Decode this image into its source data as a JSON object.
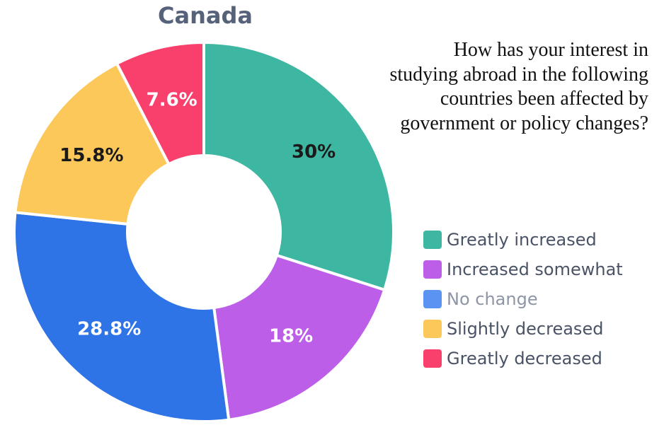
{
  "chart_data": {
    "type": "pie",
    "variant": "donut",
    "title": "Canada",
    "question": "How has your interest in studying abroad in the following countries been affected by government or policy changes?",
    "start_angle_deg": 0,
    "direction": "clockwise",
    "legend_position": "right",
    "series": [
      {
        "name": "Greatly increased",
        "value": 30,
        "label": "30%",
        "color": "#3db6a2",
        "label_color": "#1a1a1a"
      },
      {
        "name": "Increased somewhat",
        "value": 18,
        "label": "18%",
        "color": "#bd5ee9",
        "label_color": "#ffffff"
      },
      {
        "name": "No change",
        "value": 28.8,
        "label": "28.8%",
        "color": "#2e74e6",
        "label_color": "#ffffff"
      },
      {
        "name": "Slightly decreased",
        "value": 15.8,
        "label": "15.8%",
        "color": "#fdc85a",
        "label_color": "#1a1a1a"
      },
      {
        "name": "Greatly decreased",
        "value": 7.6,
        "label": "7.6%",
        "color": "#f9406d",
        "label_color": "#ffffff"
      }
    ],
    "legend": [
      {
        "label": "Greatly increased",
        "color": "#3db6a2",
        "muted": false
      },
      {
        "label": "Increased somewhat",
        "color": "#bd5ee9",
        "muted": false
      },
      {
        "label": "No change",
        "color": "#5b93f3",
        "muted": true
      },
      {
        "label": "Slightly decreased",
        "color": "#fdc85a",
        "muted": false
      },
      {
        "label": "Greatly decreased",
        "color": "#f9406d",
        "muted": false
      }
    ]
  }
}
